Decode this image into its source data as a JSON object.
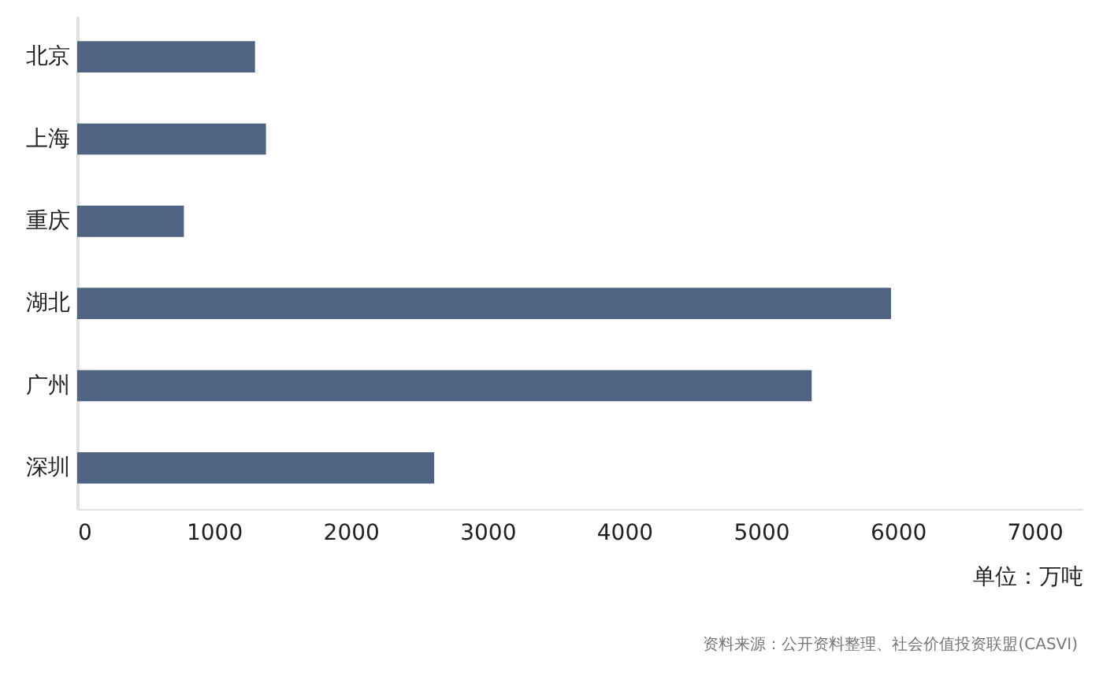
{
  "chart_data": {
    "type": "bar",
    "orientation": "horizontal",
    "categories": [
      "北京",
      "上海",
      "重庆",
      "湖北",
      "广州",
      "深圳"
    ],
    "values": [
      1300,
      1380,
      780,
      5950,
      5370,
      2610
    ],
    "color": "#4f6483",
    "xlim": [
      0,
      7350
    ],
    "xticks": [
      0,
      1000,
      2000,
      3000,
      4000,
      5000,
      6000,
      7000
    ],
    "grid": false,
    "xlabel": "单位：万吨",
    "annotations": [
      "资料来源：公开资料整理、社会价值投资联盟(CASVI)"
    ]
  }
}
